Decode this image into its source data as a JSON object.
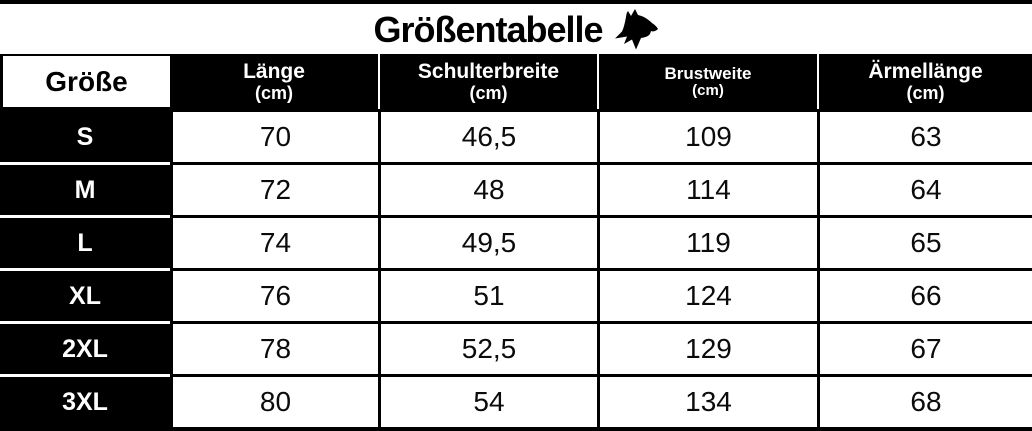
{
  "title": {
    "text": "Größentabelle",
    "icon": "horse-head-icon"
  },
  "colors": {
    "black": "#000000",
    "white": "#ffffff"
  },
  "table": {
    "columns": [
      {
        "key": "groesse",
        "label": "Größe",
        "unit": ""
      },
      {
        "key": "laenge",
        "label": "Länge",
        "unit": "(cm)"
      },
      {
        "key": "schulterbreite",
        "label": "Schulterbreite",
        "unit": "(cm)"
      },
      {
        "key": "brustweite",
        "label": "Brustweite",
        "unit": "(cm)"
      },
      {
        "key": "aermellaenge",
        "label": "Ärmellänge",
        "unit": "(cm)"
      }
    ],
    "rows": [
      {
        "size": "S",
        "values": [
          "70",
          "46,5",
          "109",
          "63"
        ]
      },
      {
        "size": "M",
        "values": [
          "72",
          "48",
          "114",
          "64"
        ]
      },
      {
        "size": "L",
        "values": [
          "74",
          "49,5",
          "119",
          "65"
        ]
      },
      {
        "size": "XL",
        "values": [
          "76",
          "51",
          "124",
          "66"
        ]
      },
      {
        "size": "2XL",
        "values": [
          "78",
          "52,5",
          "129",
          "67"
        ]
      },
      {
        "size": "3XL",
        "values": [
          "80",
          "54",
          "134",
          "68"
        ]
      }
    ]
  }
}
